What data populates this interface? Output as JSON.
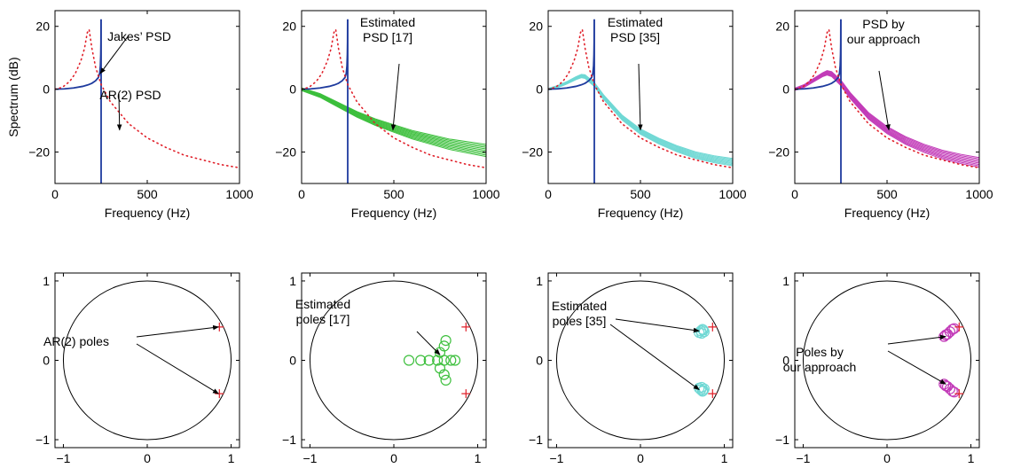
{
  "colors": {
    "jakes": "#1f3b9e",
    "ar2": "#e0202a",
    "ref17": "#3cbf3c",
    "ref35": "#6fd8d4",
    "ours": "#c23bb8",
    "axis": "#000000"
  },
  "chart_data": [
    {
      "type": "line",
      "xlabel": "Frequency (Hz)",
      "ylabel": "Spectrum (dB)",
      "xlim": [
        0,
        1000
      ],
      "ylim": [
        -30,
        25
      ],
      "xticks": [
        "0",
        "500",
        "1000"
      ],
      "yticks": [
        "20",
        "0",
        "−20"
      ],
      "grid": false,
      "annotations": [
        {
          "text": [
            "Jakes’ PSD"
          ],
          "target": [
            245,
            5
          ]
        },
        {
          "text": [
            "AR(2) PSD"
          ],
          "target": [
            350,
            -13
          ]
        }
      ],
      "series": [
        {
          "key": "jakes",
          "style": "solid",
          "x": [
            0,
            50,
            100,
            150,
            180,
            200,
            220,
            235,
            242,
            246,
            248,
            249,
            249.5,
            250,
            250,
            250
          ],
          "y": [
            0,
            0.1,
            0.4,
            0.9,
            1.4,
            1.9,
            2.7,
            3.7,
            5,
            7.5,
            11,
            15,
            22,
            22,
            -30,
            -30
          ]
        },
        {
          "key": "ar2",
          "style": "dotted",
          "x": [
            0,
            40,
            80,
            110,
            140,
            160,
            175,
            185,
            200,
            220,
            250,
            300,
            400,
            500,
            600,
            700,
            800,
            900,
            1000
          ],
          "y": [
            0,
            0.6,
            2.5,
            5,
            9,
            13,
            18,
            19,
            13,
            7,
            1.5,
            -4,
            -11,
            -15.5,
            -18.5,
            -21,
            -22.5,
            -24,
            -25
          ]
        }
      ]
    },
    {
      "type": "line",
      "xlabel": "Frequency (Hz)",
      "ylabel": "",
      "xlim": [
        0,
        1000
      ],
      "ylim": [
        -30,
        25
      ],
      "xticks": [
        "0",
        "500",
        "1000"
      ],
      "yticks": [
        "20",
        "0",
        "−20"
      ],
      "grid": false,
      "annotations": [
        {
          "text": [
            "Estimated",
            "PSD [17]"
          ],
          "target": [
            495,
            -13
          ]
        }
      ],
      "series": [
        {
          "key": "ref17",
          "style": "bundle",
          "x": [
            0,
            100,
            200,
            300,
            400,
            500,
            600,
            700,
            800,
            900,
            1000
          ],
          "y": [
            0,
            -2,
            -5,
            -8,
            -10.5,
            -12.5,
            -14.5,
            -16,
            -17.5,
            -18.5,
            -19.5
          ],
          "spread": 1.5,
          "count": 9
        },
        {
          "key": "jakes",
          "style": "solid",
          "x": [
            0,
            50,
            100,
            150,
            180,
            200,
            220,
            235,
            242,
            246,
            248,
            249,
            249.5,
            250,
            250,
            250
          ],
          "y": [
            0,
            0.1,
            0.4,
            0.9,
            1.4,
            1.9,
            2.7,
            3.7,
            5,
            7.5,
            11,
            15,
            22,
            22,
            -30,
            -30
          ]
        },
        {
          "key": "ar2",
          "style": "dotted",
          "x": [
            0,
            40,
            80,
            110,
            140,
            160,
            175,
            185,
            200,
            220,
            250,
            300,
            400,
            500,
            600,
            700,
            800,
            900,
            1000
          ],
          "y": [
            0,
            0.6,
            2.5,
            5,
            9,
            13,
            18,
            19,
            13,
            7,
            1.5,
            -4,
            -11,
            -15.5,
            -18.5,
            -21,
            -22.5,
            -24,
            -25
          ]
        }
      ]
    },
    {
      "type": "line",
      "xlabel": "Frequency (Hz)",
      "ylabel": "",
      "xlim": [
        0,
        1000
      ],
      "ylim": [
        -30,
        25
      ],
      "xticks": [
        "0",
        "500",
        "1000"
      ],
      "yticks": [
        "20",
        "0",
        "−20"
      ],
      "grid": false,
      "annotations": [
        {
          "text": [
            "Estimated",
            "PSD [35]"
          ],
          "target": [
            500,
            -13
          ]
        }
      ],
      "series": [
        {
          "key": "ref35",
          "style": "bundle",
          "x": [
            0,
            50,
            100,
            150,
            180,
            200,
            250,
            300,
            400,
            500,
            600,
            700,
            800,
            900,
            1000
          ],
          "y": [
            0,
            0.8,
            2,
            3.5,
            4.2,
            4,
            1.5,
            -2.5,
            -9,
            -13.5,
            -16.5,
            -19,
            -21,
            -22.3,
            -23.2
          ],
          "spread": 0.9,
          "count": 8
        },
        {
          "key": "jakes",
          "style": "solid",
          "x": [
            0,
            50,
            100,
            150,
            180,
            200,
            220,
            235,
            242,
            246,
            248,
            249,
            249.5,
            250,
            250,
            250
          ],
          "y": [
            0,
            0.1,
            0.4,
            0.9,
            1.4,
            1.9,
            2.7,
            3.7,
            5,
            7.5,
            11,
            15,
            22,
            22,
            -30,
            -30
          ]
        },
        {
          "key": "ar2",
          "style": "dotted",
          "x": [
            0,
            40,
            80,
            110,
            140,
            160,
            175,
            185,
            200,
            220,
            250,
            300,
            400,
            500,
            600,
            700,
            800,
            900,
            1000
          ],
          "y": [
            0,
            0.6,
            2.5,
            5,
            9,
            13,
            18,
            19,
            13,
            7,
            1.5,
            -4,
            -11,
            -15.5,
            -18.5,
            -21,
            -22.5,
            -24,
            -25
          ]
        }
      ]
    },
    {
      "type": "line",
      "xlabel": "Frequency (Hz)",
      "ylabel": "",
      "xlim": [
        0,
        1000
      ],
      "ylim": [
        -30,
        25
      ],
      "xticks": [
        "0",
        "500",
        "1000"
      ],
      "yticks": [
        "20",
        "0",
        "−20"
      ],
      "grid": false,
      "annotations": [
        {
          "text": [
            "PSD by",
            "our approach"
          ],
          "target": [
            510,
            -13
          ]
        }
      ],
      "series": [
        {
          "key": "ours",
          "style": "bundle",
          "x": [
            0,
            50,
            100,
            150,
            175,
            200,
            250,
            300,
            400,
            500,
            600,
            700,
            800,
            900,
            1000
          ],
          "y": [
            0,
            1,
            2.8,
            4.6,
            5.2,
            4.8,
            2,
            -2,
            -8.5,
            -13,
            -16.3,
            -18.8,
            -20.8,
            -22.2,
            -23.3
          ],
          "spread": 1.2,
          "count": 8
        },
        {
          "key": "jakes",
          "style": "solid",
          "x": [
            0,
            50,
            100,
            150,
            180,
            200,
            220,
            235,
            242,
            246,
            248,
            249,
            249.5,
            250,
            250,
            250
          ],
          "y": [
            0,
            0.1,
            0.4,
            0.9,
            1.4,
            1.9,
            2.7,
            3.7,
            5,
            7.5,
            11,
            15,
            22,
            22,
            -30,
            -30
          ]
        },
        {
          "key": "ar2",
          "style": "dotted",
          "x": [
            0,
            40,
            80,
            110,
            140,
            160,
            175,
            185,
            200,
            220,
            250,
            300,
            400,
            500,
            600,
            700,
            800,
            900,
            1000
          ],
          "y": [
            0,
            0.6,
            2.5,
            5,
            9,
            13,
            18,
            19,
            13,
            7,
            1.5,
            -4,
            -11,
            -15.5,
            -18.5,
            -21,
            -22.5,
            -24,
            -25
          ]
        }
      ]
    },
    {
      "type": "scatter",
      "xlabel": "",
      "ylabel": "",
      "xlim": [
        -1.1,
        1.1
      ],
      "ylim": [
        -1.1,
        1.1
      ],
      "xticks": [
        "−1",
        "0",
        "1"
      ],
      "yticks": [
        "1",
        "0",
        "−1"
      ],
      "unit_circle": true,
      "annotations": [
        {
          "text": [
            "AR(2) poles"
          ],
          "targets": [
            [
              0.85,
              0.42
            ],
            [
              0.85,
              -0.42
            ]
          ]
        }
      ],
      "poles": [
        [
          0.86,
          0.42
        ],
        [
          0.86,
          -0.42
        ]
      ],
      "estimates": {
        "key": "",
        "points": []
      }
    },
    {
      "type": "scatter",
      "xlabel": "",
      "ylabel": "",
      "xlim": [
        -1.1,
        1.1
      ],
      "ylim": [
        -1.1,
        1.1
      ],
      "xticks": [
        "−1",
        "0",
        "1"
      ],
      "yticks": [
        "1",
        "0",
        "−1"
      ],
      "unit_circle": true,
      "annotations": [
        {
          "text": [
            "Estimated",
            "poles [17]"
          ],
          "targets": [
            [
              0.55,
              0.07
            ]
          ]
        }
      ],
      "poles": [
        [
          0.86,
          0.42
        ],
        [
          0.86,
          -0.42
        ]
      ],
      "estimates": {
        "key": "ref17",
        "points": [
          [
            0.18,
            0.0
          ],
          [
            0.32,
            0.0
          ],
          [
            0.42,
            0.0
          ],
          [
            0.52,
            0.0
          ],
          [
            0.6,
            0.0
          ],
          [
            0.68,
            0.0
          ],
          [
            0.73,
            0.0
          ],
          [
            0.55,
            0.1
          ],
          [
            0.6,
            0.18
          ],
          [
            0.62,
            0.25
          ],
          [
            0.55,
            -0.1
          ],
          [
            0.6,
            -0.18
          ],
          [
            0.62,
            -0.25
          ]
        ]
      }
    },
    {
      "type": "scatter",
      "xlabel": "",
      "ylabel": "",
      "xlim": [
        -1.1,
        1.1
      ],
      "ylim": [
        -1.1,
        1.1
      ],
      "xticks": [
        "−1",
        "0",
        "1"
      ],
      "yticks": [
        "1",
        "0",
        "−1"
      ],
      "unit_circle": true,
      "annotations": [
        {
          "text": [
            "Estimated",
            "poles [35]"
          ],
          "targets": [
            [
              0.7,
              0.37
            ],
            [
              0.7,
              -0.37
            ]
          ]
        }
      ],
      "poles": [
        [
          0.86,
          0.42
        ],
        [
          0.86,
          -0.42
        ]
      ],
      "estimates": {
        "key": "ref35",
        "points": [
          [
            0.7,
            0.35
          ],
          [
            0.72,
            0.37
          ],
          [
            0.74,
            0.39
          ],
          [
            0.76,
            0.36
          ],
          [
            0.73,
            0.34
          ],
          [
            0.75,
            0.38
          ],
          [
            0.7,
            -0.35
          ],
          [
            0.72,
            -0.37
          ],
          [
            0.74,
            -0.39
          ],
          [
            0.76,
            -0.36
          ],
          [
            0.73,
            -0.34
          ],
          [
            0.75,
            -0.38
          ]
        ]
      }
    },
    {
      "type": "scatter",
      "xlabel": "",
      "ylabel": "",
      "xlim": [
        -1.1,
        1.1
      ],
      "ylim": [
        -1.1,
        1.1
      ],
      "xticks": [
        "−1",
        "0",
        "1"
      ],
      "yticks": [
        "1",
        "0",
        "−1"
      ],
      "unit_circle": true,
      "annotations": [
        {
          "text": [
            "Poles by",
            "our approach"
          ],
          "targets": [
            [
              0.7,
              0.3
            ],
            [
              0.7,
              -0.3
            ]
          ]
        }
      ],
      "poles": [
        [
          0.86,
          0.42
        ],
        [
          0.86,
          -0.42
        ]
      ],
      "estimates": {
        "key": "ours",
        "points": [
          [
            0.68,
            0.3
          ],
          [
            0.72,
            0.33
          ],
          [
            0.75,
            0.36
          ],
          [
            0.78,
            0.39
          ],
          [
            0.8,
            0.4
          ],
          [
            0.7,
            0.32
          ],
          [
            0.68,
            -0.3
          ],
          [
            0.72,
            -0.33
          ],
          [
            0.75,
            -0.36
          ],
          [
            0.78,
            -0.39
          ],
          [
            0.8,
            -0.4
          ],
          [
            0.7,
            -0.32
          ]
        ]
      }
    }
  ]
}
